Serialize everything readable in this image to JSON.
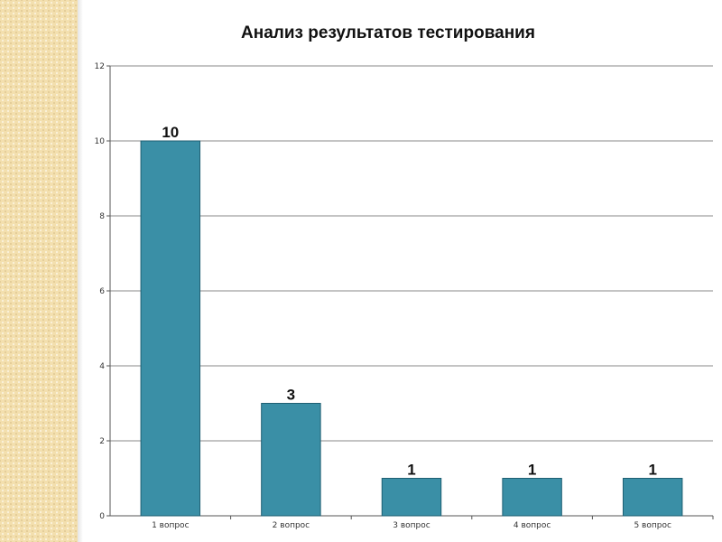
{
  "chart_data": {
    "type": "bar",
    "title": "Анализ результатов тестирования",
    "categories": [
      "1 вопрос",
      "2 вопрос",
      "3 вопрос",
      "4 вопрос",
      "5 вопрос"
    ],
    "values": [
      10,
      3,
      1,
      1,
      1
    ],
    "data_labels": [
      "10",
      "3",
      "1",
      "1",
      "1"
    ],
    "ylim": [
      0,
      12
    ],
    "yticks": [
      0,
      2,
      4,
      6,
      8,
      10,
      12
    ],
    "grid": true,
    "legend": "none",
    "bar_color": "#3a8fa6",
    "bar_edge_color": "#1f5f73"
  }
}
